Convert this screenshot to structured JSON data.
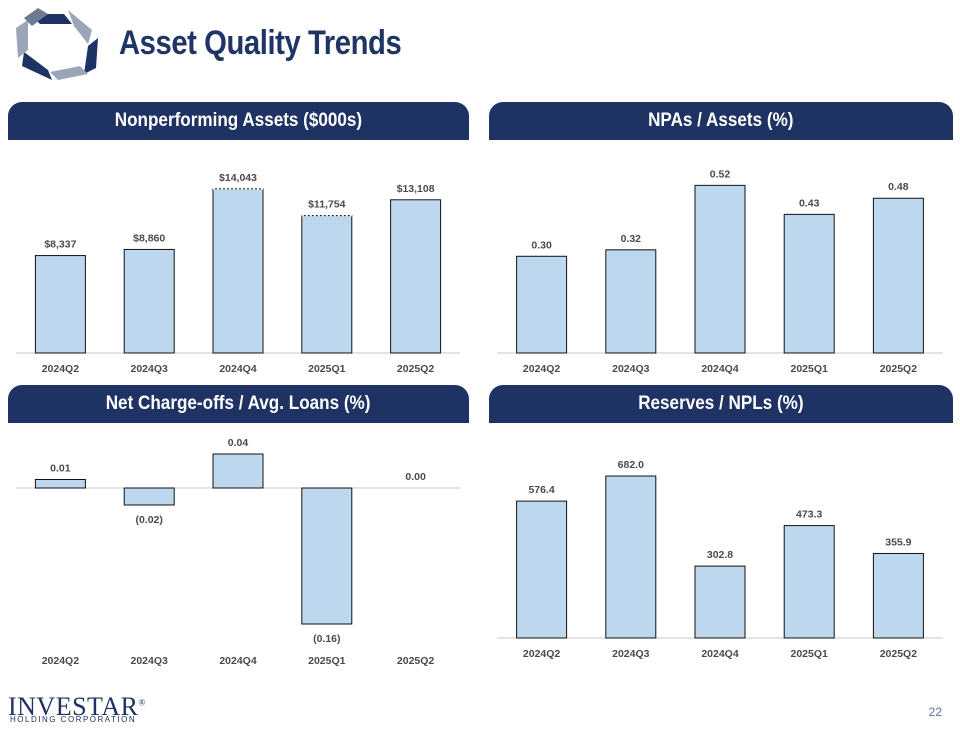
{
  "title": "Asset Quality Trends",
  "page_number": "22",
  "company": {
    "name": "INVESTAR",
    "trademark": "®",
    "tagline": "HOLDING CORPORATION"
  },
  "colors": {
    "bar_fill": "#bdd7ee",
    "bar_stroke": "#111111",
    "header_bg": "#1e3263",
    "title": "#1f3566"
  },
  "chart_data": [
    {
      "type": "bar",
      "title": "Nonperforming Assets ($000s)",
      "categories": [
        "2024Q2",
        "2024Q3",
        "2024Q4",
        "2025Q1",
        "2025Q2"
      ],
      "values": [
        8337,
        8860,
        14043,
        11754,
        13108
      ],
      "labels": [
        "$8,337",
        "$8,860",
        "$14,043",
        "$11,754",
        "$13,108"
      ],
      "ylim": [
        0,
        16000
      ],
      "dashed_top": [
        false,
        false,
        true,
        true,
        false
      ],
      "xlabel": "",
      "ylabel": ""
    },
    {
      "type": "bar",
      "title": "NPAs / Assets (%)",
      "categories": [
        "2024Q2",
        "2024Q3",
        "2024Q4",
        "2025Q1",
        "2025Q2"
      ],
      "values": [
        0.3,
        0.32,
        0.52,
        0.43,
        0.48
      ],
      "labels": [
        "0.30",
        "0.32",
        "0.52",
        "0.43",
        "0.48"
      ],
      "ylim": [
        0,
        0.58
      ],
      "xlabel": "",
      "ylabel": ""
    },
    {
      "type": "bar",
      "title": "Net Charge-offs / Avg. Loans (%)",
      "categories": [
        "2024Q2",
        "2024Q3",
        "2024Q4",
        "2025Q1",
        "2025Q2"
      ],
      "values": [
        0.01,
        -0.02,
        0.04,
        -0.16,
        0.0
      ],
      "labels": [
        "0.01",
        "(0.02)",
        "0.04",
        "(0.16)",
        "0.00"
      ],
      "ylim": [
        -0.16,
        0.04
      ],
      "xlabel": "",
      "ylabel": ""
    },
    {
      "type": "bar",
      "title": "Reserves / NPLs (%)",
      "categories": [
        "2024Q2",
        "2024Q3",
        "2024Q4",
        "2025Q1",
        "2025Q2"
      ],
      "values": [
        576.4,
        682.0,
        302.8,
        473.3,
        355.9
      ],
      "labels": [
        "576.4",
        "682.0",
        "302.8",
        "473.3",
        "355.9"
      ],
      "ylim": [
        0,
        800
      ],
      "xlabel": "",
      "ylabel": ""
    }
  ]
}
